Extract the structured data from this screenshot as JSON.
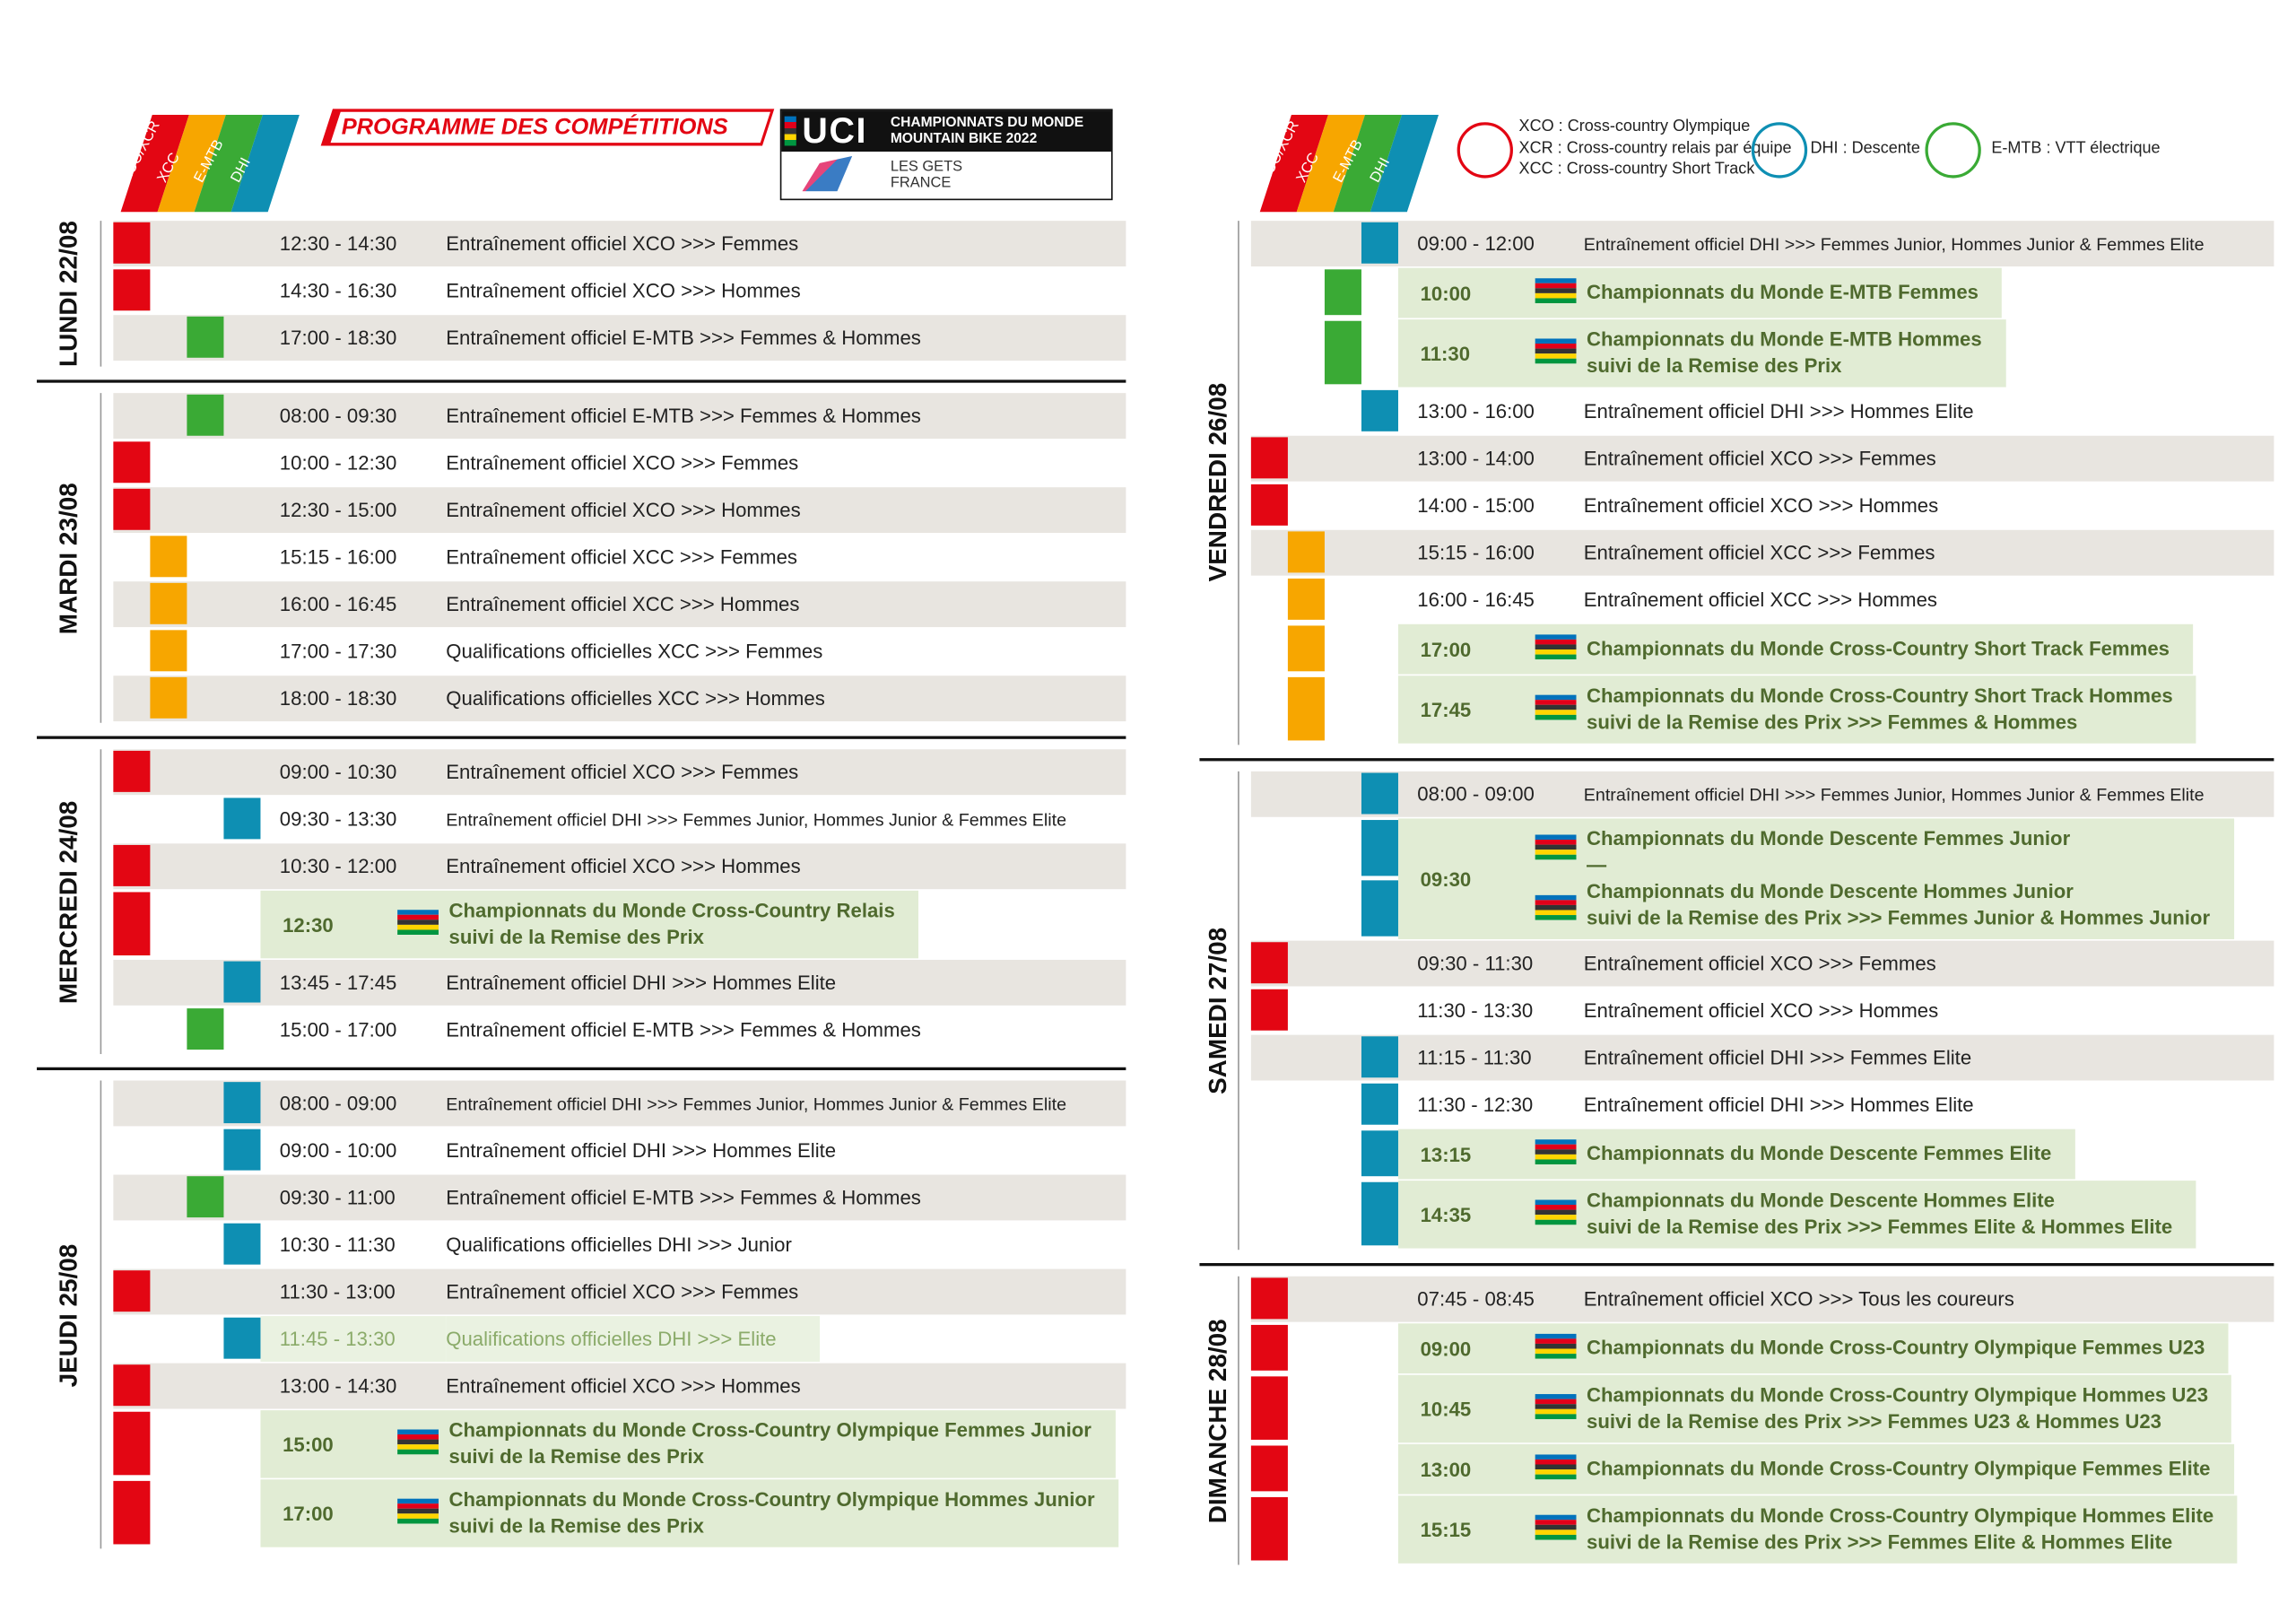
{
  "header": {
    "title": "PROGRAMME DES COMPÉTITIONS",
    "disciplines": [
      "XCO/XCR",
      "XCC",
      "E-MTB",
      "DHI"
    ],
    "colors": [
      "#e30613",
      "#f7a600",
      "#3aaa35",
      "#0e8fb3"
    ],
    "logo": {
      "brand": "UCI",
      "event": [
        "CHAMPIONNATS DU MONDE",
        "MOUNTAIN BIKE 2022"
      ],
      "place": [
        "LES GETS",
        "FRANCE"
      ]
    }
  },
  "legend": [
    {
      "color": "#e30613",
      "lines": [
        "XCO : Cross-country Olympique",
        "XCR : Cross-country relais par équipe",
        "XCC : Cross-country Short Track"
      ]
    },
    {
      "color": "#0e8fb3",
      "lines": [
        "DHI : Descente"
      ]
    },
    {
      "color": "#3aaa35",
      "lines": [
        "E-MTB : VTT électrique"
      ]
    }
  ],
  "columns": [
    {
      "days": [
        {
          "label": "LUNDI 22/08",
          "events": [
            {
              "d": "XCO/XCR",
              "time": "12:30 - 14:30",
              "text": [
                "Entraînement officiel XCO >>> Femmes"
              ]
            },
            {
              "d": "XCO/XCR",
              "time": "14:30 - 16:30",
              "text": [
                "Entraînement officiel XCO >>> Hommes"
              ]
            },
            {
              "d": "E-MTB",
              "time": "17:00 - 18:30",
              "text": [
                "Entraînement officiel E-MTB >>> Femmes & Hommes"
              ]
            }
          ]
        },
        {
          "label": "MARDI 23/08",
          "events": [
            {
              "d": "E-MTB",
              "time": "08:00 - 09:30",
              "text": [
                "Entraînement officiel E-MTB >>> Femmes & Hommes"
              ]
            },
            {
              "d": "XCO/XCR",
              "time": "10:00 - 12:30",
              "text": [
                "Entraînement officiel XCO >>> Femmes"
              ]
            },
            {
              "d": "XCO/XCR",
              "time": "12:30 - 15:00",
              "text": [
                "Entraînement officiel XCO >>> Hommes"
              ]
            },
            {
              "d": "XCC",
              "time": "15:15 - 16:00",
              "text": [
                "Entraînement officiel XCC >>> Femmes"
              ]
            },
            {
              "d": "XCC",
              "time": "16:00 - 16:45",
              "text": [
                "Entraînement officiel XCC >>> Hommes"
              ]
            },
            {
              "d": "XCC",
              "time": "17:00 - 17:30",
              "text": [
                "Qualifications officielles XCC >>> Femmes"
              ]
            },
            {
              "d": "XCC",
              "time": "18:00 - 18:30",
              "text": [
                "Qualifications officielles XCC >>> Hommes"
              ]
            }
          ]
        },
        {
          "label": "MERCREDI 24/08",
          "events": [
            {
              "d": "XCO/XCR",
              "time": "09:00 - 10:30",
              "text": [
                "Entraînement officiel XCO >>> Femmes"
              ]
            },
            {
              "d": "DHI",
              "time": "09:30 - 13:30",
              "text": [
                "Entraînement officiel DHI >>> Femmes Junior, Hommes Junior & Femmes Elite"
              ]
            },
            {
              "d": "XCO/XCR",
              "time": "10:30 - 12:00",
              "text": [
                "Entraînement officiel XCO >>> Hommes"
              ]
            },
            {
              "d": "XCO/XCR",
              "champ": true,
              "time": "12:30",
              "text": [
                "Championnats du Monde Cross-Country Relais",
                "suivi de la Remise des Prix"
              ]
            },
            {
              "d": "DHI",
              "time": "13:45 - 17:45",
              "text": [
                "Entraînement officiel DHI >>> Hommes Elite"
              ]
            },
            {
              "d": "E-MTB",
              "time": "15:00 - 17:00",
              "text": [
                "Entraînement officiel E-MTB >>> Femmes & Hommes"
              ]
            }
          ]
        },
        {
          "label": "JEUDI 25/08",
          "events": [
            {
              "d": "DHI",
              "time": "08:00 - 09:00",
              "text": [
                "Entraînement officiel DHI >>> Femmes Junior, Hommes Junior & Femmes Elite"
              ]
            },
            {
              "d": "DHI",
              "time": "09:00 - 10:00",
              "text": [
                "Entraînement officiel DHI >>> Hommes Elite"
              ]
            },
            {
              "d": "E-MTB",
              "time": "09:30 - 11:00",
              "text": [
                "Entraînement officiel E-MTB >>> Femmes & Hommes"
              ]
            },
            {
              "d": "DHI",
              "time": "10:30 - 11:30",
              "text": [
                "Qualifications officielles DHI >>> Junior"
              ]
            },
            {
              "d": "XCO/XCR",
              "time": "11:30 - 13:00",
              "text": [
                "Entraînement officiel XCO >>> Femmes"
              ]
            },
            {
              "d": "DHI",
              "time": "11:45 - 13:30",
              "text": [
                "Qualifications officielles DHI >>> Elite"
              ],
              "color": "#8bab6a"
            },
            {
              "d": "XCO/XCR",
              "time": "13:00 - 14:30",
              "text": [
                "Entraînement officiel XCO >>> Hommes"
              ]
            },
            {
              "d": "XCO/XCR",
              "champ": true,
              "time": "15:00",
              "text": [
                "Championnats du Monde Cross-Country Olympique Femmes Junior",
                "suivi de la Remise des Prix"
              ]
            },
            {
              "d": "XCO/XCR",
              "champ": true,
              "time": "17:00",
              "text": [
                "Championnats du Monde Cross-Country Olympique Hommes Junior",
                "suivi de la Remise des Prix"
              ]
            }
          ]
        }
      ]
    },
    {
      "days": [
        {
          "label": "VENDREDI 26/08",
          "events": [
            {
              "d": "DHI",
              "time": "09:00 - 12:00",
              "text": [
                "Entraînement officiel DHI >>> Femmes Junior, Hommes Junior & Femmes Elite"
              ]
            },
            {
              "d": "E-MTB",
              "champ": true,
              "time": "10:00",
              "text": [
                "Championnats du Monde E-MTB Femmes"
              ]
            },
            {
              "d": "E-MTB",
              "champ": true,
              "time": "11:30",
              "text": [
                "Championnats du Monde E-MTB Hommes",
                "suivi de la Remise des Prix"
              ]
            },
            {
              "d": "DHI",
              "time": "13:00 - 16:00",
              "text": [
                "Entraînement officiel DHI >>> Hommes Elite"
              ]
            },
            {
              "d": "XCO/XCR",
              "time": "13:00 - 14:00",
              "text": [
                "Entraînement officiel XCO >>> Femmes"
              ]
            },
            {
              "d": "XCO/XCR",
              "time": "14:00 - 15:00",
              "text": [
                "Entraînement officiel XCO >>> Hommes"
              ]
            },
            {
              "d": "XCC",
              "time": "15:15 - 16:00",
              "text": [
                "Entraînement officiel XCC >>> Femmes"
              ]
            },
            {
              "d": "XCC",
              "time": "16:00 - 16:45",
              "text": [
                "Entraînement officiel XCC >>> Hommes"
              ]
            },
            {
              "d": "XCC",
              "champ": true,
              "time": "17:00",
              "text": [
                "Championnats du Monde Cross-Country Short Track Femmes"
              ]
            },
            {
              "d": "XCC",
              "champ": true,
              "time": "17:45",
              "text": [
                "Championnats du Monde Cross-Country Short Track Hommes",
                "suivi de la Remise des Prix >>> Femmes & Hommes"
              ]
            }
          ]
        },
        {
          "label": "SAMEDI 27/08",
          "events": [
            {
              "d": "DHI",
              "time": "08:00 - 09:00",
              "text": [
                "Entraînement officiel DHI >>> Femmes Junior, Hommes Junior & Femmes Elite"
              ]
            },
            {
              "d": [
                "DHI",
                "DHI"
              ],
              "champ": true,
              "time": "09:30",
              "text": [
                "Championnats du Monde Descente Femmes Junior",
                "—",
                "Championnats du Monde Descente Hommes Junior",
                "suivi de la Remise des Prix >>> Femmes Junior & Hommes Junior"
              ]
            },
            {
              "d": "XCO/XCR",
              "time": "09:30 - 11:30",
              "text": [
                "Entraînement officiel XCO >>> Femmes"
              ]
            },
            {
              "d": "XCO/XCR",
              "time": "11:30 - 13:30",
              "text": [
                "Entraînement officiel XCO >>> Hommes"
              ]
            },
            {
              "d": "DHI",
              "time": "11:15 - 11:30",
              "text": [
                "Entraînement officiel DHI >>> Femmes Elite"
              ]
            },
            {
              "d": "DHI",
              "time": "11:30 - 12:30",
              "text": [
                "Entraînement officiel DHI >>> Hommes Elite"
              ]
            },
            {
              "d": "DHI",
              "champ": true,
              "time": "13:15",
              "text": [
                "Championnats du Monde Descente Femmes Elite"
              ]
            },
            {
              "d": "DHI",
              "champ": true,
              "time": "14:35",
              "text": [
                "Championnats du Monde Descente Hommes Elite",
                "suivi de la Remise des Prix >>> Femmes Elite & Hommes Elite"
              ]
            }
          ]
        },
        {
          "label": "DIMANCHE 28/08",
          "events": [
            {
              "d": "XCO/XCR",
              "time": "07:45 - 08:45",
              "text": [
                "Entraînement officiel XCO >>> Tous les coureurs"
              ]
            },
            {
              "d": "XCO/XCR",
              "champ": true,
              "time": "09:00",
              "text": [
                "Championnats du Monde Cross-Country Olympique Femmes U23"
              ]
            },
            {
              "d": "XCO/XCR",
              "champ": true,
              "time": "10:45",
              "text": [
                "Championnats du Monde Cross-Country Olympique Hommes U23",
                "suivi de la Remise des Prix >>> Femmes U23 & Hommes U23"
              ]
            },
            {
              "d": "XCO/XCR",
              "champ": true,
              "time": "13:00",
              "text": [
                "Championnats du Monde Cross-Country Olympique Femmes Elite"
              ]
            },
            {
              "d": "XCO/XCR",
              "champ": true,
              "time": "15:15",
              "text": [
                "Championnats du Monde Cross-Country Olympique Hommes Elite",
                "suivi de la Remise des Prix >>> Femmes Elite & Hommes Elite"
              ]
            }
          ]
        }
      ]
    }
  ]
}
